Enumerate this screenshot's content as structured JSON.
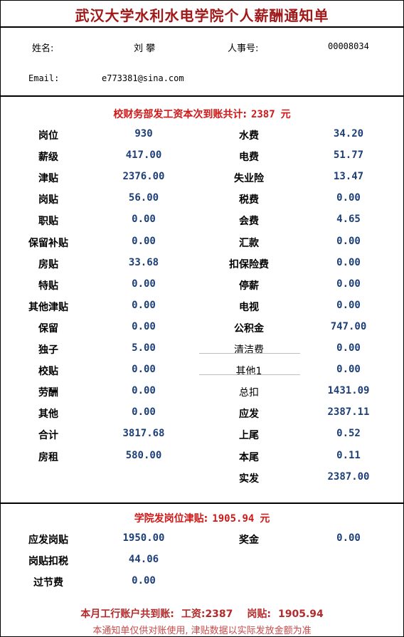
{
  "title": "武汉大学水利水电学院个人薪酬通知单",
  "info": {
    "name_label": "姓名:",
    "name_value": "刘 攀",
    "staff_id_label": "人事号:",
    "staff_id_value": "00008034",
    "email_label": "Email:",
    "email_value": "e773381@sina.com"
  },
  "school_banner": {
    "label": "校财务部发工资本次到账共计:",
    "amount": "2387",
    "unit": "元"
  },
  "salary_rows": [
    {
      "l1": "岗位",
      "v1": "930",
      "l2": "水费",
      "v2": "34.20"
    },
    {
      "l1": "薪级",
      "v1": "417.00",
      "l2": "电费",
      "v2": "51.77"
    },
    {
      "l1": "津贴",
      "v1": "2376.00",
      "l2": "失业险",
      "v2": "13.47"
    },
    {
      "l1": "岗贴",
      "v1": "56.00",
      "l2": "税费",
      "v2": "0.00"
    },
    {
      "l1": "职贴",
      "v1": "0.00",
      "l2": "会费",
      "v2": "4.65"
    },
    {
      "l1": "保留补贴",
      "v1": "0.00",
      "l2": "汇款",
      "v2": "0.00"
    },
    {
      "l1": "房贴",
      "v1": "33.68",
      "l2": "扣保险费",
      "v2": "0.00"
    },
    {
      "l1": "特贴",
      "v1": "0.00",
      "l2": "停薪",
      "v2": "0.00"
    },
    {
      "l1": "其他津贴",
      "v1": "0.00",
      "l2": "电视",
      "v2": "0.00"
    },
    {
      "l1": "保留",
      "v1": "0.00",
      "l2": "公积金",
      "v2": "747.00"
    },
    {
      "l1": "独子",
      "v1": "5.00",
      "l2": "清洁费",
      "v2": "0.00"
    },
    {
      "l1": "校贴",
      "v1": "0.00",
      "l2": "其他1",
      "v2": "0.00"
    },
    {
      "l1": "劳酬",
      "v1": "0.00",
      "l2": "总扣",
      "v2": "1431.09"
    },
    {
      "l1": "其他",
      "v1": "0.00",
      "l2": "应发",
      "v2": "2387.11"
    },
    {
      "l1": "合计",
      "v1": "3817.68",
      "l2": "上尾",
      "v2": "0.52"
    },
    {
      "l1": "房租",
      "v1": "580.00",
      "l2": "本尾",
      "v2": "0.11"
    },
    {
      "l1": "",
      "v1": "",
      "l2": "实发",
      "v2": "2387.00"
    }
  ],
  "college_banner": {
    "label": "学院发岗位津贴:",
    "amount": "1905.94",
    "unit": "元"
  },
  "college_rows": [
    {
      "l1": "应发岗贴",
      "v1": "1950.00",
      "l2": "奖金",
      "v2": "0.00"
    },
    {
      "l1": "岗贴扣税",
      "v1": "44.06",
      "l2": "",
      "v2": ""
    },
    {
      "l1": "过节费",
      "v1": "0.00",
      "l2": "",
      "v2": ""
    }
  ],
  "footer": {
    "summary_label": "本月工行账户共到账:",
    "wage_label": "工资:",
    "wage_value": "2387",
    "allowance_label": "岗贴:",
    "allowance_value": "1905.94",
    "note": "本通知单仅供对账使用, 津贴数据以实际发放金额为准"
  }
}
